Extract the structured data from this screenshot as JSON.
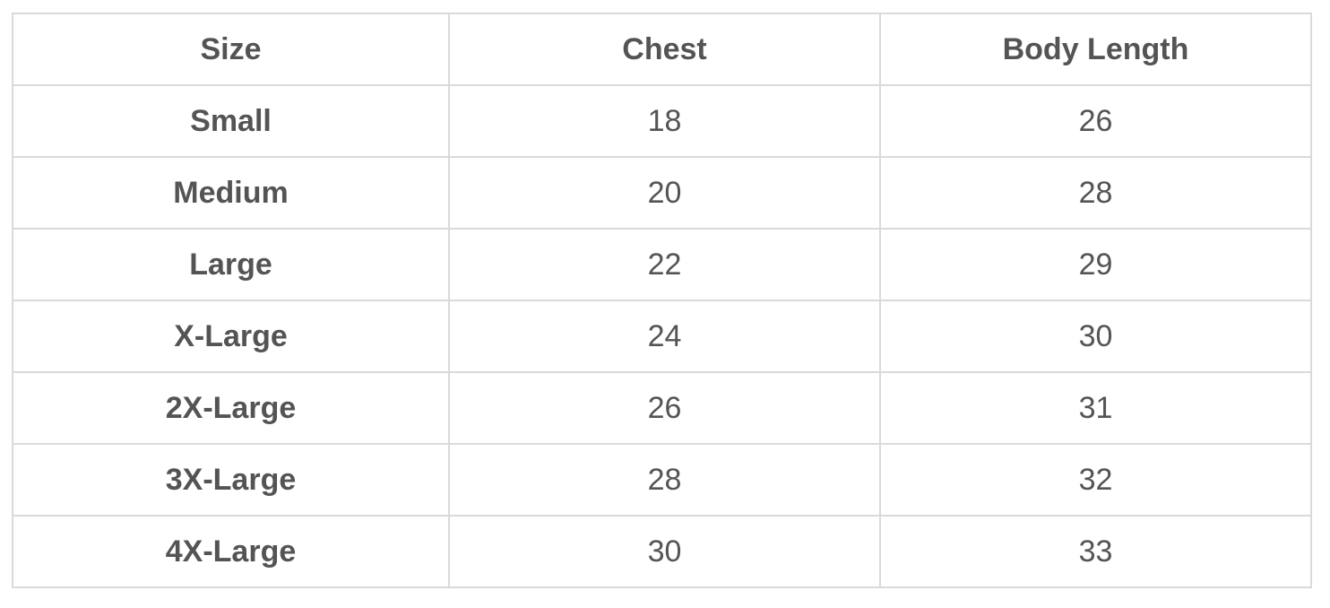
{
  "colors": {
    "background": "#ffffff",
    "text": "#545454",
    "border": "#dadada"
  },
  "chart_data": {
    "type": "table",
    "columns": [
      "Size",
      "Chest",
      "Body Length"
    ],
    "rows": [
      [
        "Small",
        18,
        26
      ],
      [
        "Medium",
        20,
        28
      ],
      [
        "Large",
        22,
        29
      ],
      [
        "X-Large",
        24,
        30
      ],
      [
        "2X-Large",
        26,
        31
      ],
      [
        "3X-Large",
        28,
        32
      ],
      [
        "4X-Large",
        30,
        33
      ]
    ]
  }
}
